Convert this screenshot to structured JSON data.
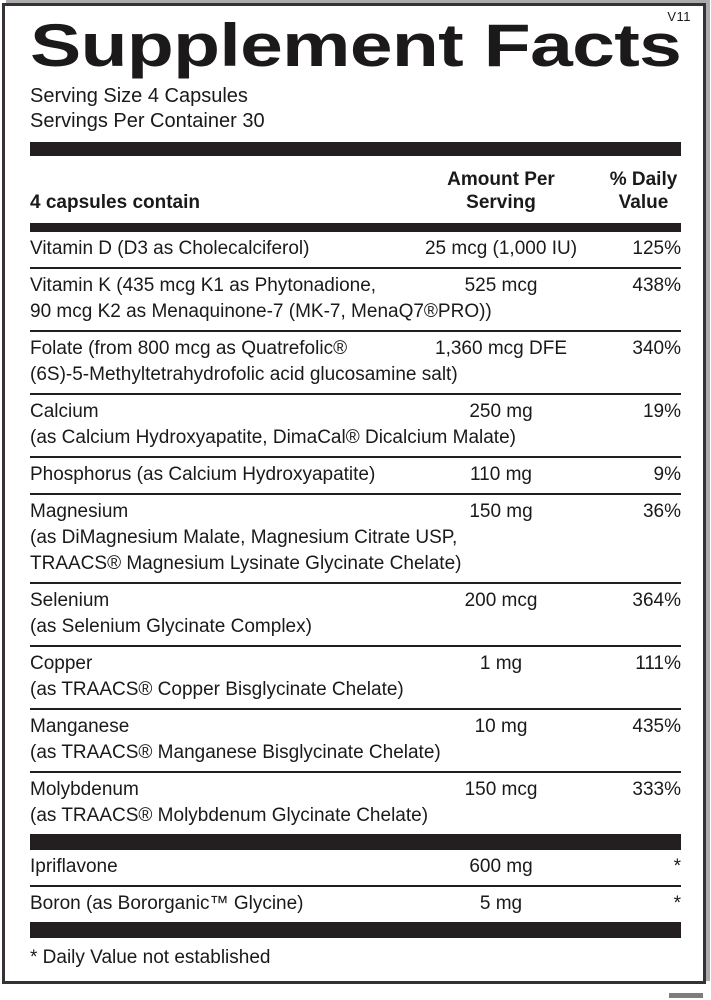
{
  "version": "V11",
  "title": "Supplement Facts",
  "serving": {
    "size": "Serving Size 4 Capsules",
    "per_container": "Servings Per Container 30"
  },
  "header": {
    "contains": "4 capsules contain",
    "amount_line1": "Amount Per",
    "amount_line2": "Serving",
    "dv_line1": "% Daily",
    "dv_line2": "Value"
  },
  "table": {
    "rows": [
      {
        "name": "Vitamin D (D3 as Cholecalciferol)",
        "amount": "25 mcg (1,000 IU)",
        "dv": "125%",
        "desc": []
      },
      {
        "name": "Vitamin K (435 mcg K1 as Phytonadione,",
        "amount": "525 mcg",
        "dv": "438%",
        "desc": [
          "90 mcg K2 as Menaquinone-7 (MK-7, MenaQ7®PRO))"
        ]
      },
      {
        "name": "Folate (from 800 mcg as Quatrefolic®",
        "amount": "1,360 mcg DFE",
        "dv": "340%",
        "desc": [
          "(6S)-5-Methyltetrahydrofolic acid glucosamine salt)"
        ]
      },
      {
        "name": "Calcium",
        "amount": "250 mg",
        "dv": "19%",
        "desc": [
          "(as Calcium Hydroxyapatite, DimaCal® Dicalcium Malate)"
        ]
      },
      {
        "name": "Phosphorus (as Calcium Hydroxyapatite)",
        "amount": "110 mg",
        "dv": "9%",
        "desc": []
      },
      {
        "name": "Magnesium",
        "amount": "150 mg",
        "dv": "36%",
        "desc": [
          "(as DiMagnesium Malate, Magnesium Citrate USP,",
          "TRAACS® Magnesium Lysinate Glycinate Chelate)"
        ]
      },
      {
        "name": "Selenium",
        "amount": "200 mcg",
        "dv": "364%",
        "desc": [
          "(as Selenium Glycinate Complex)"
        ]
      },
      {
        "name": "Copper",
        "amount": "1 mg",
        "dv": "111%",
        "desc": [
          "(as TRAACS® Copper Bisglycinate Chelate)"
        ]
      },
      {
        "name": "Manganese",
        "amount": "10 mg",
        "dv": "435%",
        "desc": [
          "(as TRAACS® Manganese Bisglycinate Chelate)"
        ]
      },
      {
        "name": "Molybdenum",
        "amount": "150 mcg",
        "dv": "333%",
        "desc": [
          "(as TRAACS® Molybdenum Glycinate Chelate)"
        ]
      }
    ],
    "other_rows": [
      {
        "name": "Ipriflavone",
        "amount": "600 mg",
        "dv": "*",
        "desc": []
      },
      {
        "name": "Boron (as Bororganic™ Glycine)",
        "amount": "5 mg",
        "dv": "*",
        "desc": []
      }
    ]
  },
  "footnote": "* Daily Value not established",
  "colors": {
    "bar": "#231f20",
    "text": "#1b191a",
    "border": "#363136"
  }
}
